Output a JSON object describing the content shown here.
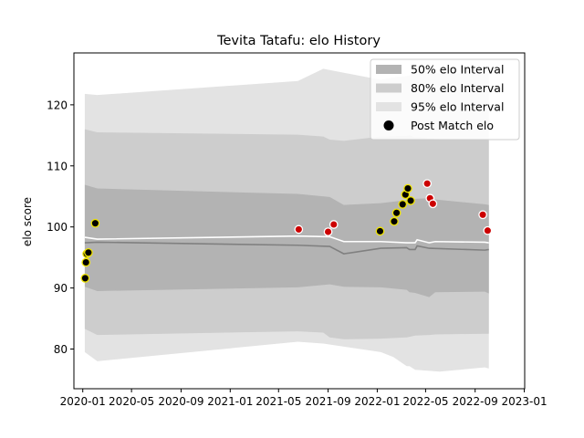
{
  "chart_data": {
    "type": "area",
    "title": "Tevita Tatafu: elo History",
    "xlabel": "",
    "ylabel": "elo score",
    "xlim": [
      "2019-12-10",
      "2023-01-02"
    ],
    "ylim": [
      73.5,
      128.5
    ],
    "grid": false,
    "legend_position": "top-right",
    "x_ticks": [
      "2020-01-01",
      "2020-05-01",
      "2020-09-01",
      "2021-01-01",
      "2021-05-01",
      "2021-09-01",
      "2022-01-01",
      "2022-05-01",
      "2022-09-01",
      "2023-01-01"
    ],
    "x_tick_labels": [
      "2020-01",
      "2020-05",
      "2020-09",
      "2021-01",
      "2021-05",
      "2021-09",
      "2022-01",
      "2022-05",
      "2022-09",
      "2023-01"
    ],
    "y_ticks": [
      80,
      90,
      100,
      110,
      120
    ],
    "series": [
      {
        "name": "95% elo Interval",
        "kind": "band",
        "color": "#e3e3e3",
        "x": [
          "2020-01-06",
          "2020-02-06",
          "2021-06-18",
          "2021-08-20",
          "2022-01-10",
          "2022-02-10",
          "2022-03-15",
          "2022-03-22",
          "2022-04-05",
          "2022-06-05",
          "2022-09-25",
          "2022-10-05"
        ],
        "lower": [
          79.5,
          78.0,
          81.2,
          80.9,
          79.5,
          78.7,
          77.2,
          77.2,
          76.6,
          76.3,
          77.0,
          76.8
        ],
        "upper": [
          121.8,
          121.6,
          123.9,
          125.9,
          124.1,
          124.5,
          124.7,
          124.8,
          125.5,
          125.2,
          125.2,
          125.2
        ]
      },
      {
        "name": "80% elo Interval",
        "kind": "band",
        "color": "#cdcdcd",
        "x": [
          "2020-01-06",
          "2020-02-06",
          "2021-06-18",
          "2021-08-20",
          "2021-09-05",
          "2021-10-10",
          "2022-01-10",
          "2022-03-15",
          "2022-03-22",
          "2022-04-05",
          "2022-05-10",
          "2022-05-25",
          "2022-09-25",
          "2022-10-05"
        ],
        "lower": [
          83.3,
          82.3,
          82.9,
          82.7,
          81.9,
          81.6,
          81.7,
          81.9,
          82.0,
          82.2,
          82.3,
          82.4,
          82.5,
          82.5
        ],
        "upper": [
          116.0,
          115.5,
          115.1,
          114.8,
          114.3,
          114.1,
          114.8,
          114.9,
          115.0,
          114.7,
          114.5,
          114.4,
          114.3,
          114.2
        ]
      },
      {
        "name": "50% elo Interval",
        "kind": "band",
        "color": "#b3b3b3",
        "x": [
          "2020-01-06",
          "2020-02-06",
          "2021-06-18",
          "2021-09-05",
          "2021-10-10",
          "2022-01-10",
          "2022-03-15",
          "2022-03-22",
          "2022-04-05",
          "2022-05-10",
          "2022-05-25",
          "2022-09-25",
          "2022-10-05"
        ],
        "lower": [
          90.2,
          89.5,
          90.1,
          90.6,
          90.2,
          90.1,
          89.7,
          89.3,
          89.2,
          88.5,
          89.3,
          89.4,
          89.1
        ],
        "upper": [
          106.9,
          106.3,
          105.4,
          104.9,
          103.6,
          103.9,
          104.4,
          104.5,
          104.6,
          104.7,
          104.5,
          103.7,
          103.6
        ]
      },
      {
        "name": "mean",
        "kind": "line",
        "color": "#808080",
        "x": [
          "2020-01-06",
          "2020-02-06",
          "2021-06-18",
          "2021-09-05",
          "2021-10-10",
          "2022-01-10",
          "2022-03-15",
          "2022-03-22",
          "2022-04-05",
          "2022-04-10",
          "2022-05-10",
          "2022-09-25",
          "2022-10-05"
        ],
        "y": [
          97.4,
          97.5,
          97.0,
          96.8,
          95.6,
          96.5,
          96.6,
          96.3,
          96.3,
          96.9,
          96.5,
          96.2,
          96.3
        ]
      },
      {
        "name": "median",
        "kind": "line",
        "color": "#ffffff",
        "x": [
          "2020-01-06",
          "2020-02-06",
          "2021-06-18",
          "2021-09-05",
          "2021-10-10",
          "2022-01-10",
          "2022-03-15",
          "2022-03-22",
          "2022-04-05",
          "2022-04-10",
          "2022-05-10",
          "2022-05-25",
          "2022-09-25",
          "2022-10-05"
        ],
        "y": [
          98.3,
          98.0,
          98.5,
          98.4,
          97.6,
          97.6,
          97.4,
          97.4,
          97.4,
          97.9,
          97.4,
          97.6,
          97.5,
          97.4
        ]
      },
      {
        "name": "Post Match elo",
        "kind": "points",
        "x": [
          "2020-01-07",
          "2020-01-09",
          "2020-01-11",
          "2020-01-15",
          "2020-02-01",
          "2021-06-20",
          "2021-09-01",
          "2021-09-15",
          "2022-01-08",
          "2022-02-12",
          "2022-02-18",
          "2022-03-05",
          "2022-03-12",
          "2022-03-18",
          "2022-03-25",
          "2022-05-05",
          "2022-05-12",
          "2022-05-19",
          "2022-09-20",
          "2022-10-02"
        ],
        "y": [
          91.6,
          94.2,
          95.6,
          95.8,
          100.6,
          99.6,
          99.2,
          100.4,
          99.3,
          100.9,
          102.3,
          103.7,
          105.3,
          106.3,
          104.3,
          107.1,
          104.7,
          103.8,
          102.0,
          99.4
        ],
        "edge": [
          "yellow",
          "yellow",
          "yellow",
          "yellow",
          "yellow",
          "white",
          "white",
          "white",
          "yellow",
          "yellow",
          "yellow",
          "yellow",
          "yellow",
          "yellow",
          "yellow",
          "white",
          "white",
          "white",
          "white",
          "white"
        ],
        "face": [
          "black",
          "black",
          "black",
          "black",
          "black",
          "red",
          "red",
          "red",
          "black",
          "black",
          "black",
          "black",
          "black",
          "black",
          "black",
          "red",
          "red",
          "red",
          "red",
          "red"
        ]
      }
    ],
    "legend": [
      {
        "label": "50% elo Interval",
        "color": "#b3b3b3",
        "marker": "patch"
      },
      {
        "label": "80% elo Interval",
        "color": "#cdcdcd",
        "marker": "patch"
      },
      {
        "label": "95% elo Interval",
        "color": "#e3e3e3",
        "marker": "patch"
      },
      {
        "label": "Post Match elo",
        "color": "#000000",
        "marker": "dot"
      }
    ]
  }
}
